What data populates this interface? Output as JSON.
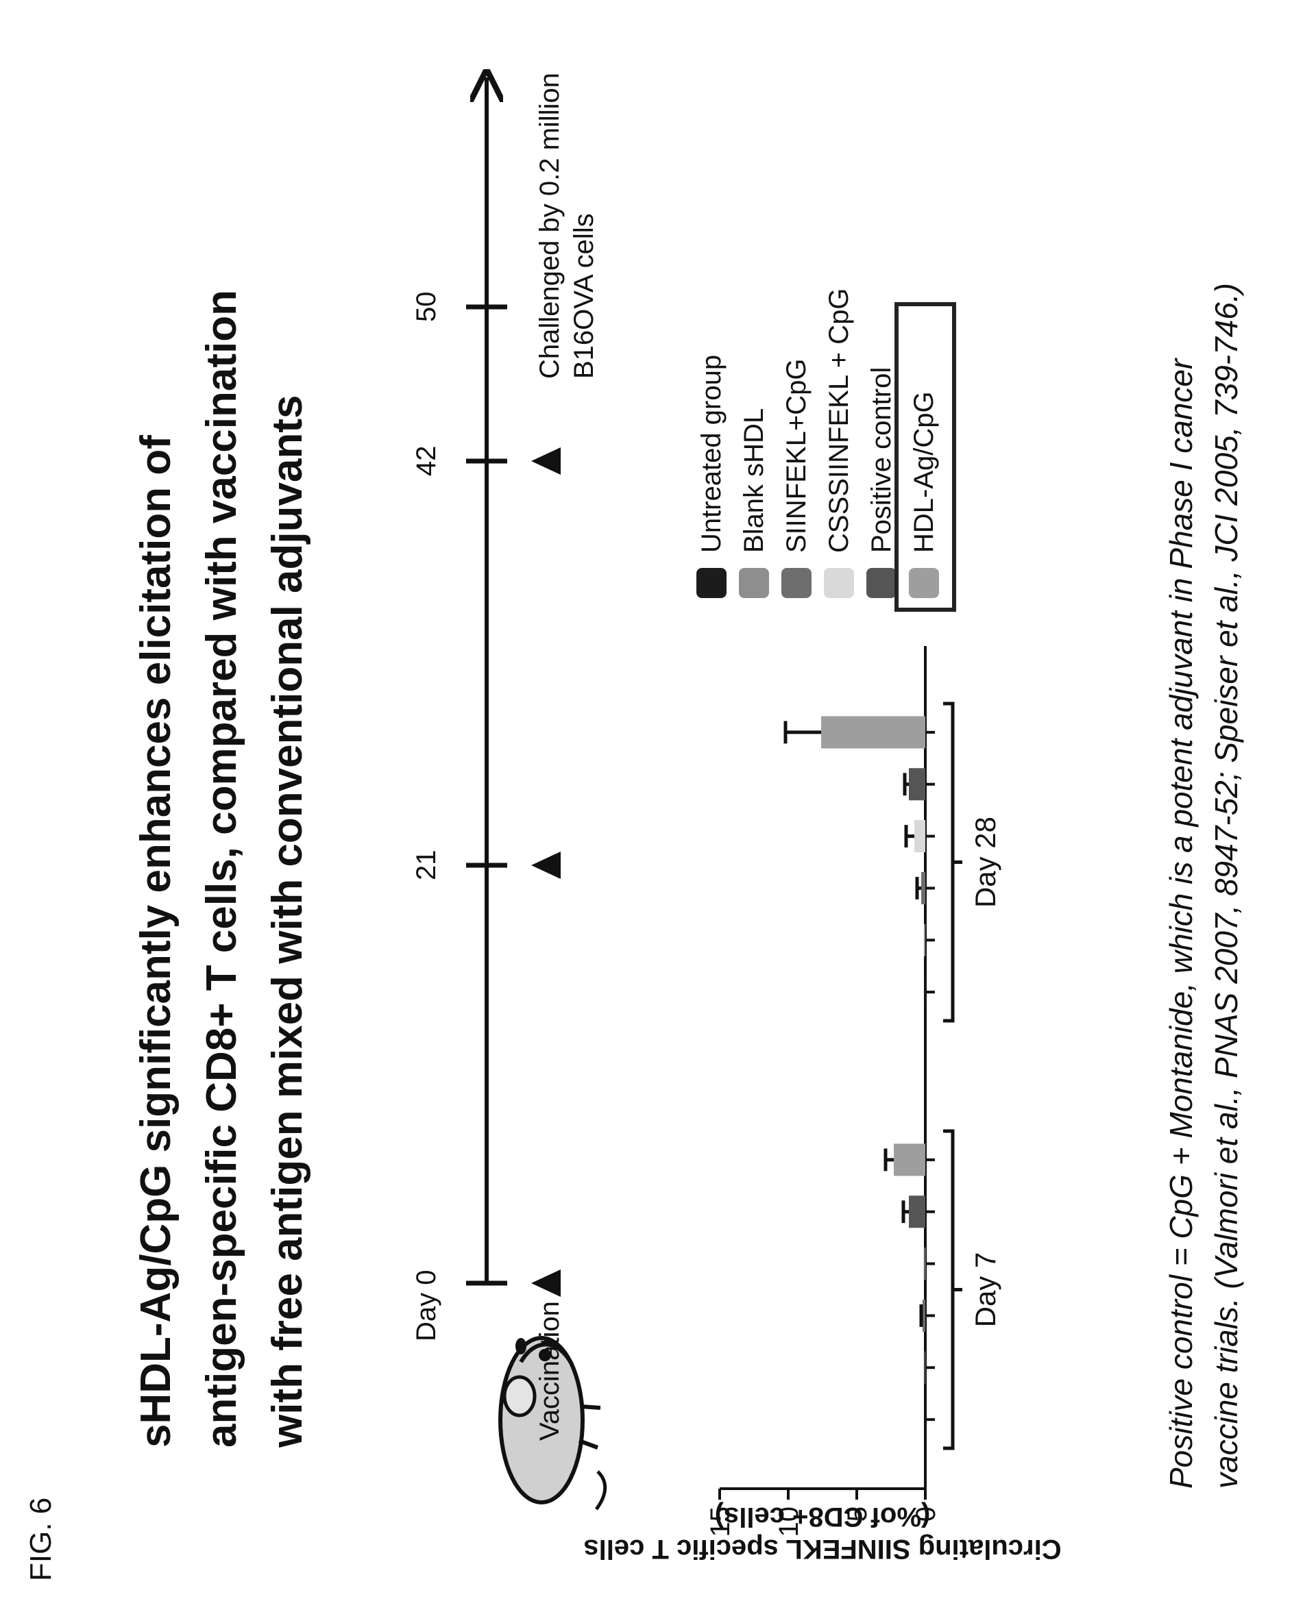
{
  "figure_label": "FIG. 6",
  "title_lines": [
    "sHDL-Ag/CpG  significantly enhances elicitation of",
    "antigen-specific  CD8+ T cells,  compared  with vaccination",
    "with free antigen mixed with conventional  adjuvants"
  ],
  "timeline": {
    "day_label": "Day 0",
    "ticks": [
      "21",
      "42",
      "50"
    ],
    "vaccination_label": "Vaccination",
    "challenge_label_lines": [
      "Challenged by 0.2 million",
      "B16OVA cells"
    ]
  },
  "chart_data": {
    "type": "bar",
    "ylabel": "Circulating SIINFEKL specific T cells",
    "ylabel_sub": "(%of CD8+ cells)",
    "ylim": [
      0,
      15
    ],
    "yticks": [
      "0",
      "5",
      "10",
      "15"
    ],
    "categories": [
      "Day 7",
      "Day 28"
    ],
    "series": [
      {
        "name": "Untreated group",
        "color": "#1c1c1c",
        "values": [
          0.05,
          0.05
        ],
        "errors": [
          0,
          0
        ]
      },
      {
        "name": "Blank sHDL",
        "color": "#8e8e8e",
        "values": [
          0.05,
          0.1
        ],
        "errors": [
          0,
          0
        ]
      },
      {
        "name": "SIINFEKL+CpG",
        "color": "#6e6e6e",
        "values": [
          0.2,
          0.3
        ],
        "errors": [
          0.1,
          0.3
        ]
      },
      {
        "name": "CSSSIINFEKL + CpG",
        "color": "#d9d9d9",
        "values": [
          0.05,
          0.8
        ],
        "errors": [
          0,
          0.6
        ]
      },
      {
        "name": "Positive control",
        "color": "#555555",
        "values": [
          1.2,
          1.2
        ],
        "errors": [
          0.4,
          0.3
        ]
      },
      {
        "name": "HDL-Ag/CpG",
        "color": "#9e9e9e",
        "values": [
          2.3,
          7.6
        ],
        "errors": [
          0.6,
          2.6
        ]
      }
    ]
  },
  "caption_lines": [
    "Positive control = CpG + Montanide,  which is a potent adjuvant  in Phase I cancer",
    "vaccine trials. (Valmori et al., PNAS 2007,  8947-52;  Speiser et al., JCI 2005,  739-746.)"
  ]
}
